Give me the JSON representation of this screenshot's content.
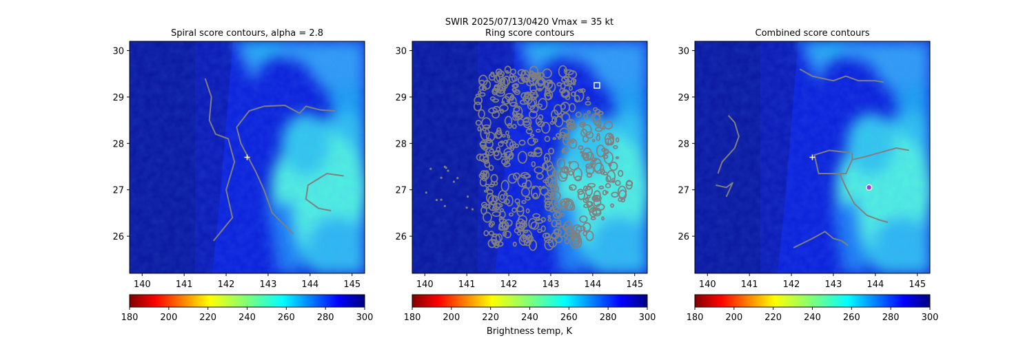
{
  "figure": {
    "suptitle_line1": "SWIR  2025/07/13/0420    Vmax = 35 kt",
    "colorbar_label": "Brightness temp, K"
  },
  "colors": {
    "contour": "#808080",
    "background": "#ffffff"
  },
  "colorbar": {
    "ticks": [
      "180",
      "200",
      "220",
      "240",
      "260",
      "280",
      "300"
    ],
    "range": [
      180,
      300
    ],
    "colormap": "jet_r"
  },
  "chart_data": [
    {
      "type": "heatmap",
      "title": "Spiral score contours, alpha =  2.8",
      "xlim": [
        139.7,
        145.3
      ],
      "ylim": [
        25.2,
        30.2
      ],
      "xticks": [
        "140",
        "141",
        "142",
        "143",
        "144",
        "145"
      ],
      "yticks": [
        "26",
        "27",
        "28",
        "29",
        "30"
      ],
      "markers": [
        {
          "symbol": "plus",
          "x": 142.5,
          "y": 27.7,
          "color": "#ffffff"
        }
      ],
      "contours": [
        [
          [
            141.5,
            29.4
          ],
          [
            141.65,
            29.0
          ],
          [
            141.6,
            28.5
          ],
          [
            141.75,
            28.2
          ],
          [
            142.05,
            28.1
          ],
          [
            142.2,
            27.6
          ],
          [
            142.0,
            27.0
          ],
          [
            142.15,
            26.4
          ],
          [
            141.7,
            25.9
          ]
        ],
        [
          [
            142.9,
            28.8
          ],
          [
            142.55,
            28.7
          ],
          [
            142.25,
            28.35
          ],
          [
            142.35,
            28.0
          ],
          [
            142.7,
            27.4
          ],
          [
            142.9,
            27.0
          ],
          [
            143.1,
            26.5
          ],
          [
            143.6,
            26.05
          ]
        ],
        [
          [
            142.9,
            28.8
          ],
          [
            143.4,
            28.82
          ],
          [
            143.75,
            28.65
          ],
          [
            143.9,
            28.8
          ],
          [
            144.25,
            28.72
          ],
          [
            144.6,
            28.7
          ]
        ],
        [
          [
            144.8,
            27.3
          ],
          [
            144.4,
            27.35
          ],
          [
            143.95,
            27.1
          ],
          [
            143.9,
            26.8
          ],
          [
            144.2,
            26.6
          ],
          [
            144.5,
            26.55
          ]
        ]
      ]
    },
    {
      "type": "heatmap",
      "title": "Ring score contours",
      "xlim": [
        139.7,
        145.3
      ],
      "ylim": [
        25.2,
        30.2
      ],
      "xticks": [
        "140",
        "141",
        "142",
        "143",
        "144",
        "145"
      ],
      "yticks": [
        "26",
        "27",
        "28",
        "29",
        "30"
      ],
      "markers": [
        {
          "symbol": "square",
          "x": 144.1,
          "y": 29.25,
          "color": "#ffffff"
        }
      ],
      "contour_region": {
        "x_left_by_y": [
          [
            29.6,
            141.3
          ],
          [
            28.5,
            141.2
          ],
          [
            27.5,
            141.35
          ],
          [
            26.5,
            141.4
          ],
          [
            25.8,
            141.5
          ]
        ],
        "x_right_by_y": [
          [
            29.6,
            143.5
          ],
          [
            28.5,
            144.3
          ],
          [
            27.5,
            145.0
          ],
          [
            26.8,
            144.8
          ],
          [
            26.0,
            144.0
          ],
          [
            25.8,
            143.5
          ]
        ]
      },
      "contours": []
    },
    {
      "type": "heatmap",
      "title": "Combined score contours",
      "xlim": [
        139.7,
        145.3
      ],
      "ylim": [
        25.2,
        30.2
      ],
      "xticks": [
        "140",
        "141",
        "142",
        "143",
        "144",
        "145"
      ],
      "yticks": [
        "26",
        "27",
        "28",
        "29",
        "30"
      ],
      "markers": [
        {
          "symbol": "plus",
          "x": 142.5,
          "y": 27.7,
          "color": "#ffffff"
        },
        {
          "symbol": "circle",
          "x": 143.85,
          "y": 27.05,
          "color": "#9b3fd8"
        }
      ],
      "contours": [
        [
          [
            142.2,
            29.6
          ],
          [
            142.5,
            29.45
          ],
          [
            143.0,
            29.35
          ],
          [
            143.3,
            29.45
          ],
          [
            143.6,
            29.35
          ],
          [
            144.0,
            29.35
          ],
          [
            144.2,
            29.32
          ]
        ],
        [
          [
            140.5,
            28.6
          ],
          [
            140.65,
            28.45
          ],
          [
            140.75,
            28.15
          ],
          [
            140.65,
            27.9
          ],
          [
            140.35,
            27.6
          ],
          [
            140.25,
            27.35
          ]
        ],
        [
          [
            140.2,
            27.1
          ],
          [
            140.45,
            27.05
          ],
          [
            140.6,
            27.15
          ],
          [
            140.45,
            26.85
          ]
        ],
        [
          [
            143.4,
            27.8
          ],
          [
            142.9,
            27.85
          ],
          [
            142.55,
            27.75
          ],
          [
            142.65,
            27.35
          ],
          [
            143.05,
            27.35
          ],
          [
            143.3,
            27.35
          ],
          [
            143.45,
            27.65
          ],
          [
            143.45,
            27.8
          ]
        ],
        [
          [
            143.45,
            27.65
          ],
          [
            143.7,
            27.7
          ],
          [
            144.1,
            27.8
          ],
          [
            144.5,
            27.9
          ],
          [
            144.8,
            27.85
          ]
        ],
        [
          [
            143.15,
            27.35
          ],
          [
            143.3,
            27.05
          ],
          [
            143.5,
            26.7
          ],
          [
            143.8,
            26.45
          ],
          [
            144.1,
            26.35
          ],
          [
            144.3,
            26.3
          ]
        ],
        [
          [
            142.05,
            25.75
          ],
          [
            142.5,
            25.95
          ],
          [
            142.8,
            26.1
          ],
          [
            143.0,
            25.95
          ],
          [
            143.2,
            25.9
          ],
          [
            143.35,
            25.8
          ]
        ]
      ]
    }
  ]
}
